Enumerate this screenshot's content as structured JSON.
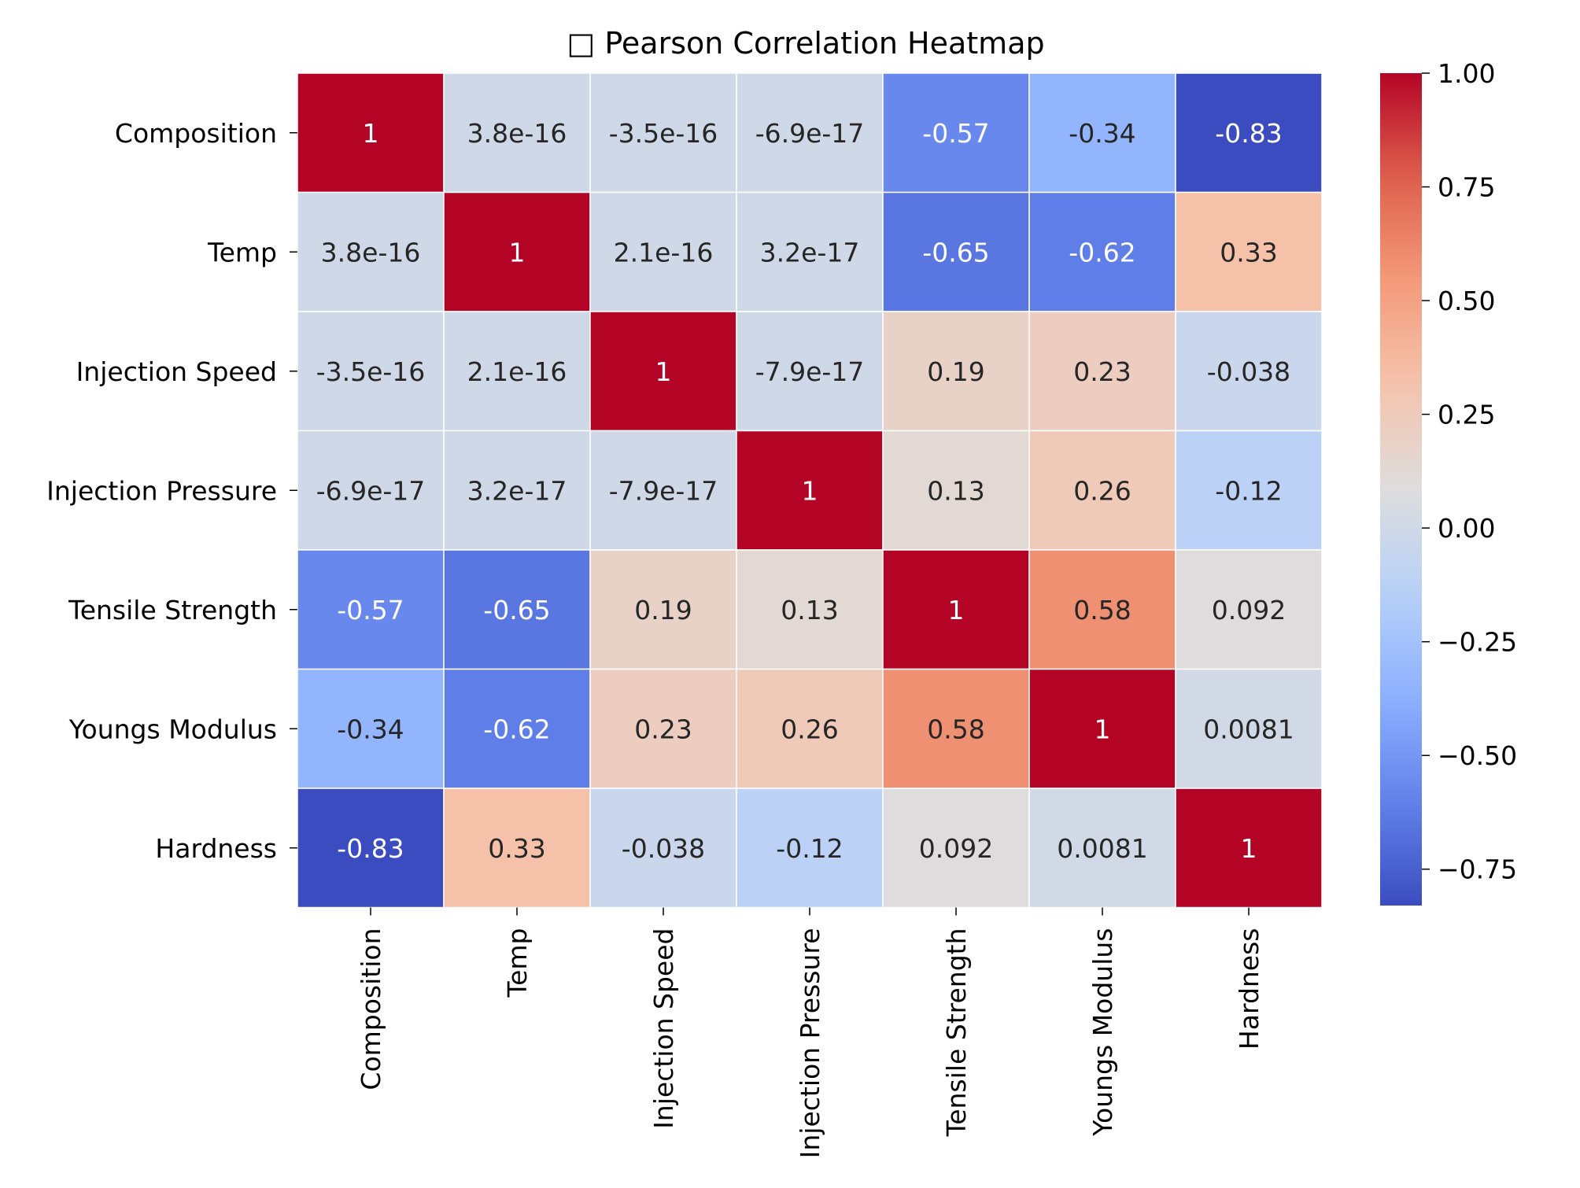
{
  "chart_data": {
    "type": "heatmap",
    "title": "Pearson Correlation Heatmap",
    "title_prefix_glyph": "□",
    "row_labels": [
      "Composition",
      "Temp",
      "Injection Speed",
      "Injection Pressure",
      "Tensile Strength",
      "Youngs Modulus",
      "Hardness"
    ],
    "col_labels": [
      "Composition",
      "Temp",
      "Injection Speed",
      "Injection Pressure",
      "Tensile Strength",
      "Youngs Modulus",
      "Hardness"
    ],
    "values": [
      [
        1,
        3.8e-16,
        -3.5e-16,
        -6.9e-17,
        -0.57,
        -0.34,
        -0.83
      ],
      [
        3.8e-16,
        1,
        2.1e-16,
        3.2e-17,
        -0.65,
        -0.62,
        0.33
      ],
      [
        -3.5e-16,
        2.1e-16,
        1,
        -7.9e-17,
        0.19,
        0.23,
        -0.038
      ],
      [
        -6.9e-17,
        3.2e-17,
        -7.9e-17,
        1,
        0.13,
        0.26,
        -0.12
      ],
      [
        -0.57,
        -0.65,
        0.19,
        0.13,
        1,
        0.58,
        0.092
      ],
      [
        -0.34,
        -0.62,
        0.23,
        0.26,
        0.58,
        1,
        0.0081
      ],
      [
        -0.83,
        0.33,
        -0.038,
        -0.12,
        0.092,
        0.0081,
        1
      ]
    ],
    "annotations": [
      [
        "1",
        "3.8e-16",
        "-3.5e-16",
        "-6.9e-17",
        "-0.57",
        "-0.34",
        "-0.83"
      ],
      [
        "3.8e-16",
        "1",
        "2.1e-16",
        "3.2e-17",
        "-0.65",
        "-0.62",
        "0.33"
      ],
      [
        "-3.5e-16",
        "2.1e-16",
        "1",
        "-7.9e-17",
        "0.19",
        "0.23",
        "-0.038"
      ],
      [
        "-6.9e-17",
        "3.2e-17",
        "-7.9e-17",
        "1",
        "0.13",
        "0.26",
        "-0.12"
      ],
      [
        "-0.57",
        "-0.65",
        "0.19",
        "0.13",
        "1",
        "0.58",
        "0.092"
      ],
      [
        "-0.34",
        "-0.62",
        "0.23",
        "0.26",
        "0.58",
        "1",
        "0.0081"
      ],
      [
        "-0.83",
        "0.33",
        "-0.038",
        "-0.12",
        "0.092",
        "0.0081",
        "1"
      ]
    ],
    "colorbar": {
      "min": -0.83,
      "max": 1.0,
      "ticks": [
        1.0,
        0.75,
        0.5,
        0.25,
        0.0,
        -0.25,
        -0.5,
        -0.75
      ],
      "tick_labels": [
        "1.00",
        "0.75",
        "0.50",
        "0.25",
        "0.00",
        "−0.25",
        "−0.50",
        "−0.75"
      ],
      "colormap": "coolwarm"
    }
  }
}
